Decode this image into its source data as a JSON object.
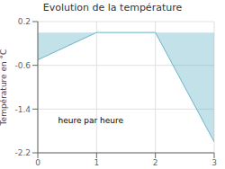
{
  "chart_data": {
    "type": "area",
    "title": "Evolution de la température",
    "ylabel": "Température en °C",
    "annotation": "heure par heure",
    "x": [
      0,
      1,
      2,
      3
    ],
    "values": [
      -0.5,
      0.0,
      0.0,
      -2.0
    ],
    "color": "#6ab4c8",
    "xlim": [
      0,
      3
    ],
    "ylim": [
      -2.2,
      0.2
    ],
    "xticks": [
      0,
      1,
      2,
      3
    ],
    "yticks": [
      0.2,
      -0.6,
      -1.4,
      -2.2
    ],
    "grid": true
  }
}
